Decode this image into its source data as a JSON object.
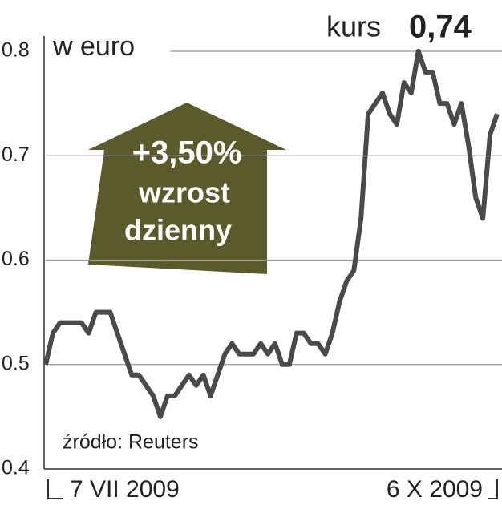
{
  "chart_data": {
    "type": "line",
    "unit_label": "w euro",
    "headline": {
      "label": "kurs",
      "value_text": "0,74"
    },
    "badge": {
      "change": "+3,50%",
      "line1": "wzrost",
      "line2": "dzienny",
      "color": "#5a5a2a"
    },
    "source": "źródło: Reuters",
    "categories": [
      "7 VII 2009",
      null,
      null,
      null,
      null,
      null,
      null,
      null,
      null,
      null,
      null,
      null,
      null,
      null,
      null,
      null,
      null,
      null,
      null,
      null,
      null,
      null,
      null,
      null,
      null,
      null,
      null,
      null,
      null,
      null,
      null,
      null,
      null,
      null,
      null,
      null,
      null,
      null,
      null,
      null,
      null,
      null,
      null,
      null,
      null,
      null,
      null,
      null,
      null,
      null,
      null,
      null,
      null,
      null,
      null,
      null,
      null,
      null,
      null,
      null,
      null,
      null,
      null,
      "6 X 2009"
    ],
    "series": [
      {
        "color": "#4a4a4a",
        "values": [
          0.5,
          0.53,
          0.54,
          0.54,
          0.54,
          0.54,
          0.53,
          0.55,
          0.55,
          0.55,
          0.53,
          0.51,
          0.49,
          0.49,
          0.48,
          0.47,
          0.45,
          0.47,
          0.47,
          0.48,
          0.49,
          0.48,
          0.49,
          0.47,
          0.49,
          0.51,
          0.52,
          0.51,
          0.51,
          0.51,
          0.52,
          0.51,
          0.52,
          0.5,
          0.5,
          0.53,
          0.53,
          0.52,
          0.52,
          0.51,
          0.53,
          0.56,
          0.58,
          0.59,
          0.64,
          0.74,
          0.75,
          0.76,
          0.74,
          0.73,
          0.77,
          0.76,
          0.8,
          0.78,
          0.78,
          0.75,
          0.75,
          0.73,
          0.75,
          0.71,
          0.66,
          0.64,
          0.72,
          0.74
        ]
      }
    ],
    "ylim": [
      0.4,
      0.8
    ],
    "yticks": [
      0.4,
      0.5,
      0.6,
      0.7,
      0.8
    ],
    "grid": true
  }
}
